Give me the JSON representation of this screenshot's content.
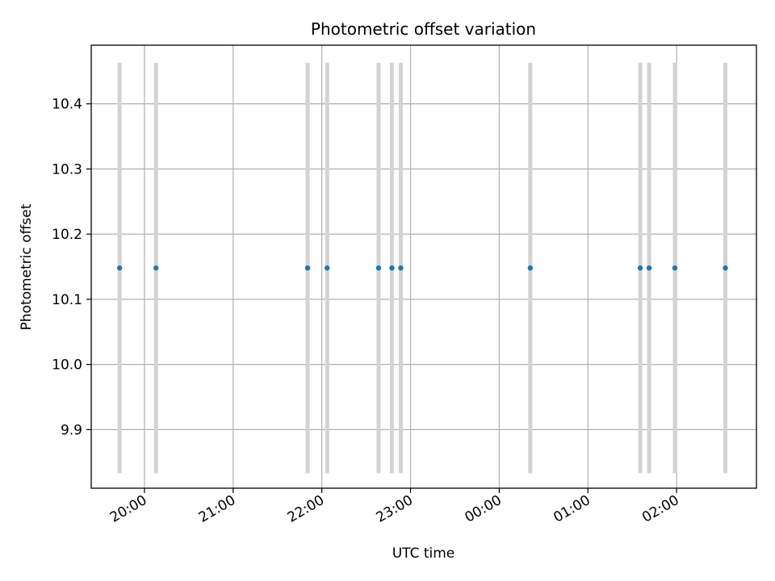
{
  "chart_data": {
    "type": "scatter",
    "title": "Photometric offset variation",
    "xlabel": "UTC time",
    "ylabel": "Photometric offset",
    "x_tick_labels": [
      "20:00",
      "21:00",
      "22:00",
      "23:00",
      "00:00",
      "01:00",
      "02:00"
    ],
    "y_tick_labels": [
      "9.9",
      "10.0",
      "10.1",
      "10.2",
      "10.3",
      "10.4"
    ],
    "y_ticks": [
      9.9,
      10.0,
      10.1,
      10.2,
      10.3,
      10.4
    ],
    "x_ticks_hours": [
      0,
      1,
      2,
      3,
      4,
      5,
      6
    ],
    "xlim_hours": [
      -0.6,
      6.9
    ],
    "ylim": [
      9.81,
      10.49
    ],
    "grid": true,
    "x_reference_time": "20:00",
    "series": [
      {
        "color": "#1f77b4",
        "errorbar_color": "#d3d3d3",
        "points": [
          {
            "time": "19:43",
            "t": -0.28,
            "y": 10.148,
            "err": 0.315
          },
          {
            "time": "20:08",
            "t": 0.13,
            "y": 10.148,
            "err": 0.315
          },
          {
            "time": "21:50",
            "t": 1.84,
            "y": 10.148,
            "err": 0.315
          },
          {
            "time": "22:04",
            "t": 2.06,
            "y": 10.148,
            "err": 0.315
          },
          {
            "time": "22:38",
            "t": 2.64,
            "y": 10.148,
            "err": 0.315
          },
          {
            "time": "22:47",
            "t": 2.79,
            "y": 10.148,
            "err": 0.315
          },
          {
            "time": "22:53",
            "t": 2.89,
            "y": 10.148,
            "err": 0.315
          },
          {
            "time": "00:21",
            "t": 4.35,
            "y": 10.148,
            "err": 0.315
          },
          {
            "time": "01:35",
            "t": 5.59,
            "y": 10.148,
            "err": 0.315
          },
          {
            "time": "01:41",
            "t": 5.69,
            "y": 10.148,
            "err": 0.315
          },
          {
            "time": "01:59",
            "t": 5.98,
            "y": 10.148,
            "err": 0.315
          },
          {
            "time": "02:33",
            "t": 6.55,
            "y": 10.148,
            "err": 0.315
          }
        ]
      }
    ]
  }
}
